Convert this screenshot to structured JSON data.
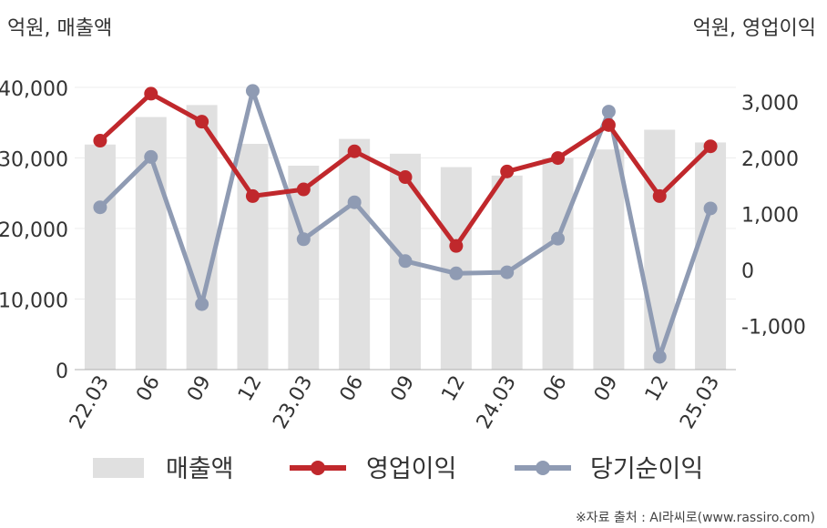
{
  "chart_data": {
    "type": "bar",
    "left_axis_unit": "억원, 매출액",
    "right_axis_unit": "억원, 영업이익",
    "categories": [
      "22.03",
      "06",
      "09",
      "12",
      "23.03",
      "06",
      "09",
      "12",
      "24.03",
      "06",
      "09",
      "12",
      "25.03"
    ],
    "left_ylim": [
      0,
      40000
    ],
    "left_ticks": [
      "0",
      "10,000",
      "20,000",
      "30,000",
      "40,000"
    ],
    "right_ylim": [
      -1800,
      3300
    ],
    "right_ticks": [
      "-1,000",
      "0",
      "1,000",
      "2,000",
      "3,000"
    ],
    "grid": true,
    "legend_position": "bottom",
    "series": [
      {
        "name": "매출액",
        "type": "bar",
        "axis": "left",
        "color": "#e0e0e0",
        "values": [
          31900,
          35800,
          37500,
          32000,
          28900,
          32700,
          30600,
          28700,
          27500,
          30000,
          31200,
          34000,
          32200
        ]
      },
      {
        "name": "영업이익",
        "type": "line",
        "axis": "right",
        "color": "#c0282c",
        "values": [
          2300,
          3140,
          2640,
          1310,
          1430,
          2110,
          1650,
          420,
          1750,
          1990,
          2580,
          1310,
          2200
        ]
      },
      {
        "name": "당기순이익",
        "type": "line",
        "axis": "right",
        "color": "#8f9bb3",
        "values": [
          1110,
          2010,
          -620,
          3190,
          540,
          1200,
          150,
          -70,
          -50,
          550,
          2820,
          -1560,
          1090
        ]
      }
    ],
    "source": "※자료 출처 : AI라씨로(www.rassiro.com)"
  }
}
